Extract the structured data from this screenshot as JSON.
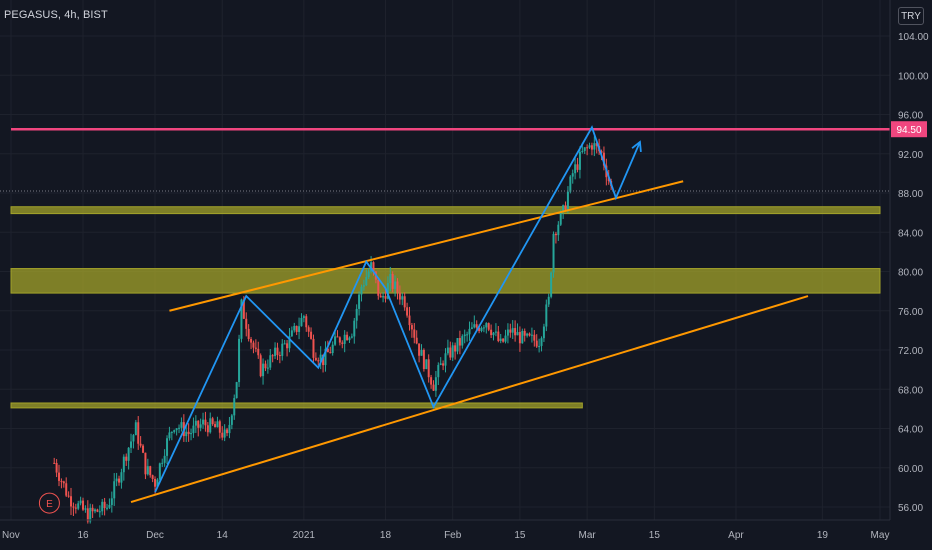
{
  "header": {
    "title": "PEGASUS, 4h, BIST",
    "currency": "TRY"
  },
  "colors": {
    "background": "#131722",
    "grid": "#1e222d",
    "up": "#26a69a",
    "down": "#ef5350",
    "pattern": "#2196f3",
    "trendline": "#ff9800",
    "zone": "#a3a32a",
    "resistance": "#f0467f"
  },
  "chart_data": {
    "type": "candlestick",
    "symbol": "PEGASUS",
    "interval": "4h",
    "exchange": "BIST",
    "ylim": [
      54.5,
      106
    ],
    "y_ticks": [
      56,
      60,
      64,
      68,
      72,
      76,
      80,
      84,
      88,
      92,
      96,
      100,
      104
    ],
    "y_tick_labels": [
      "56.00",
      "60.00",
      "64.00",
      "68.00",
      "72.00",
      "76.00",
      "80.00",
      "84.00",
      "88.00",
      "92.00",
      "96.00",
      "100.00",
      "104.00"
    ],
    "x_ticks": [
      {
        "label": "Nov",
        "day": 0
      },
      {
        "label": "16",
        "day": 15
      },
      {
        "label": "Dec",
        "day": 30
      },
      {
        "label": "14",
        "day": 44
      },
      {
        "label": "2021",
        "day": 61
      },
      {
        "label": "18",
        "day": 78
      },
      {
        "label": "Feb",
        "day": 92
      },
      {
        "label": "15",
        "day": 106
      },
      {
        "label": "Mar",
        "day": 120
      },
      {
        "label": "15",
        "day": 134
      },
      {
        "label": "Apr",
        "day": 151
      },
      {
        "label": "19",
        "day": 169
      },
      {
        "label": "May",
        "day": 181
      }
    ],
    "x_range_days": [
      0,
      181
    ],
    "price_label": "94.50",
    "grid": true,
    "annotations": [
      {
        "name": "resistance-line",
        "type": "hline",
        "y": 94.5,
        "x_start": 0,
        "x_end": 181
      },
      {
        "name": "current-price-line",
        "type": "hline",
        "y": 88.2,
        "dashed": true
      },
      {
        "name": "zone-upper",
        "type": "zone",
        "y": [
          85.9,
          86.6
        ],
        "x_start": 0,
        "x_end": 181
      },
      {
        "name": "zone-middle",
        "type": "zone",
        "y": [
          77.8,
          80.3
        ],
        "x_start": 0,
        "x_end": 181
      },
      {
        "name": "zone-lower",
        "type": "zone",
        "y": [
          66.1,
          66.6
        ],
        "x_start": 0,
        "x_end": 119
      },
      {
        "name": "channel-upper",
        "type": "trendline",
        "points": [
          [
            33,
            76.0
          ],
          [
            140,
            89.2
          ]
        ]
      },
      {
        "name": "channel-lower",
        "type": "trendline",
        "points": [
          [
            25,
            56.5
          ],
          [
            166,
            77.5
          ]
        ]
      },
      {
        "name": "wave-path",
        "type": "polyline",
        "points": [
          [
            30,
            57.5
          ],
          [
            49,
            77.5
          ],
          [
            64,
            70.2
          ],
          [
            74,
            81.0
          ],
          [
            78,
            78.3
          ],
          [
            88,
            66.2
          ],
          [
            121,
            94.7
          ],
          [
            126,
            87.5
          ],
          [
            131,
            93.2
          ]
        ]
      },
      {
        "name": "event-marker",
        "type": "marker",
        "label": "E",
        "day": 8,
        "y": 56.4
      }
    ]
  }
}
